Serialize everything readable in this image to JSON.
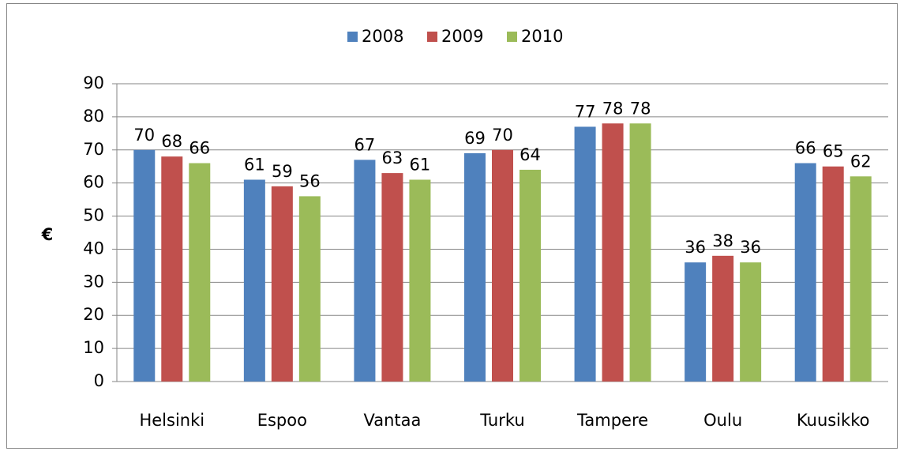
{
  "chart_data": {
    "type": "bar",
    "y_label": "€",
    "categories": [
      "Helsinki",
      "Espoo",
      "Vantaa",
      "Turku",
      "Tampere",
      "Oulu",
      "Kuusikko"
    ],
    "series": [
      {
        "name": "2008",
        "color": "#4f81bd",
        "values": [
          70,
          61,
          67,
          69,
          77,
          36,
          66
        ]
      },
      {
        "name": "2009",
        "color": "#c0504d",
        "values": [
          68,
          59,
          63,
          70,
          78,
          38,
          65
        ]
      },
      {
        "name": "2010",
        "color": "#9bbb59",
        "values": [
          66,
          56,
          61,
          64,
          78,
          36,
          62
        ]
      }
    ],
    "ylim": [
      0,
      90
    ],
    "yticks": [
      0,
      10,
      20,
      30,
      40,
      50,
      60,
      70,
      80,
      90
    ],
    "grid": true,
    "legend": "top"
  }
}
